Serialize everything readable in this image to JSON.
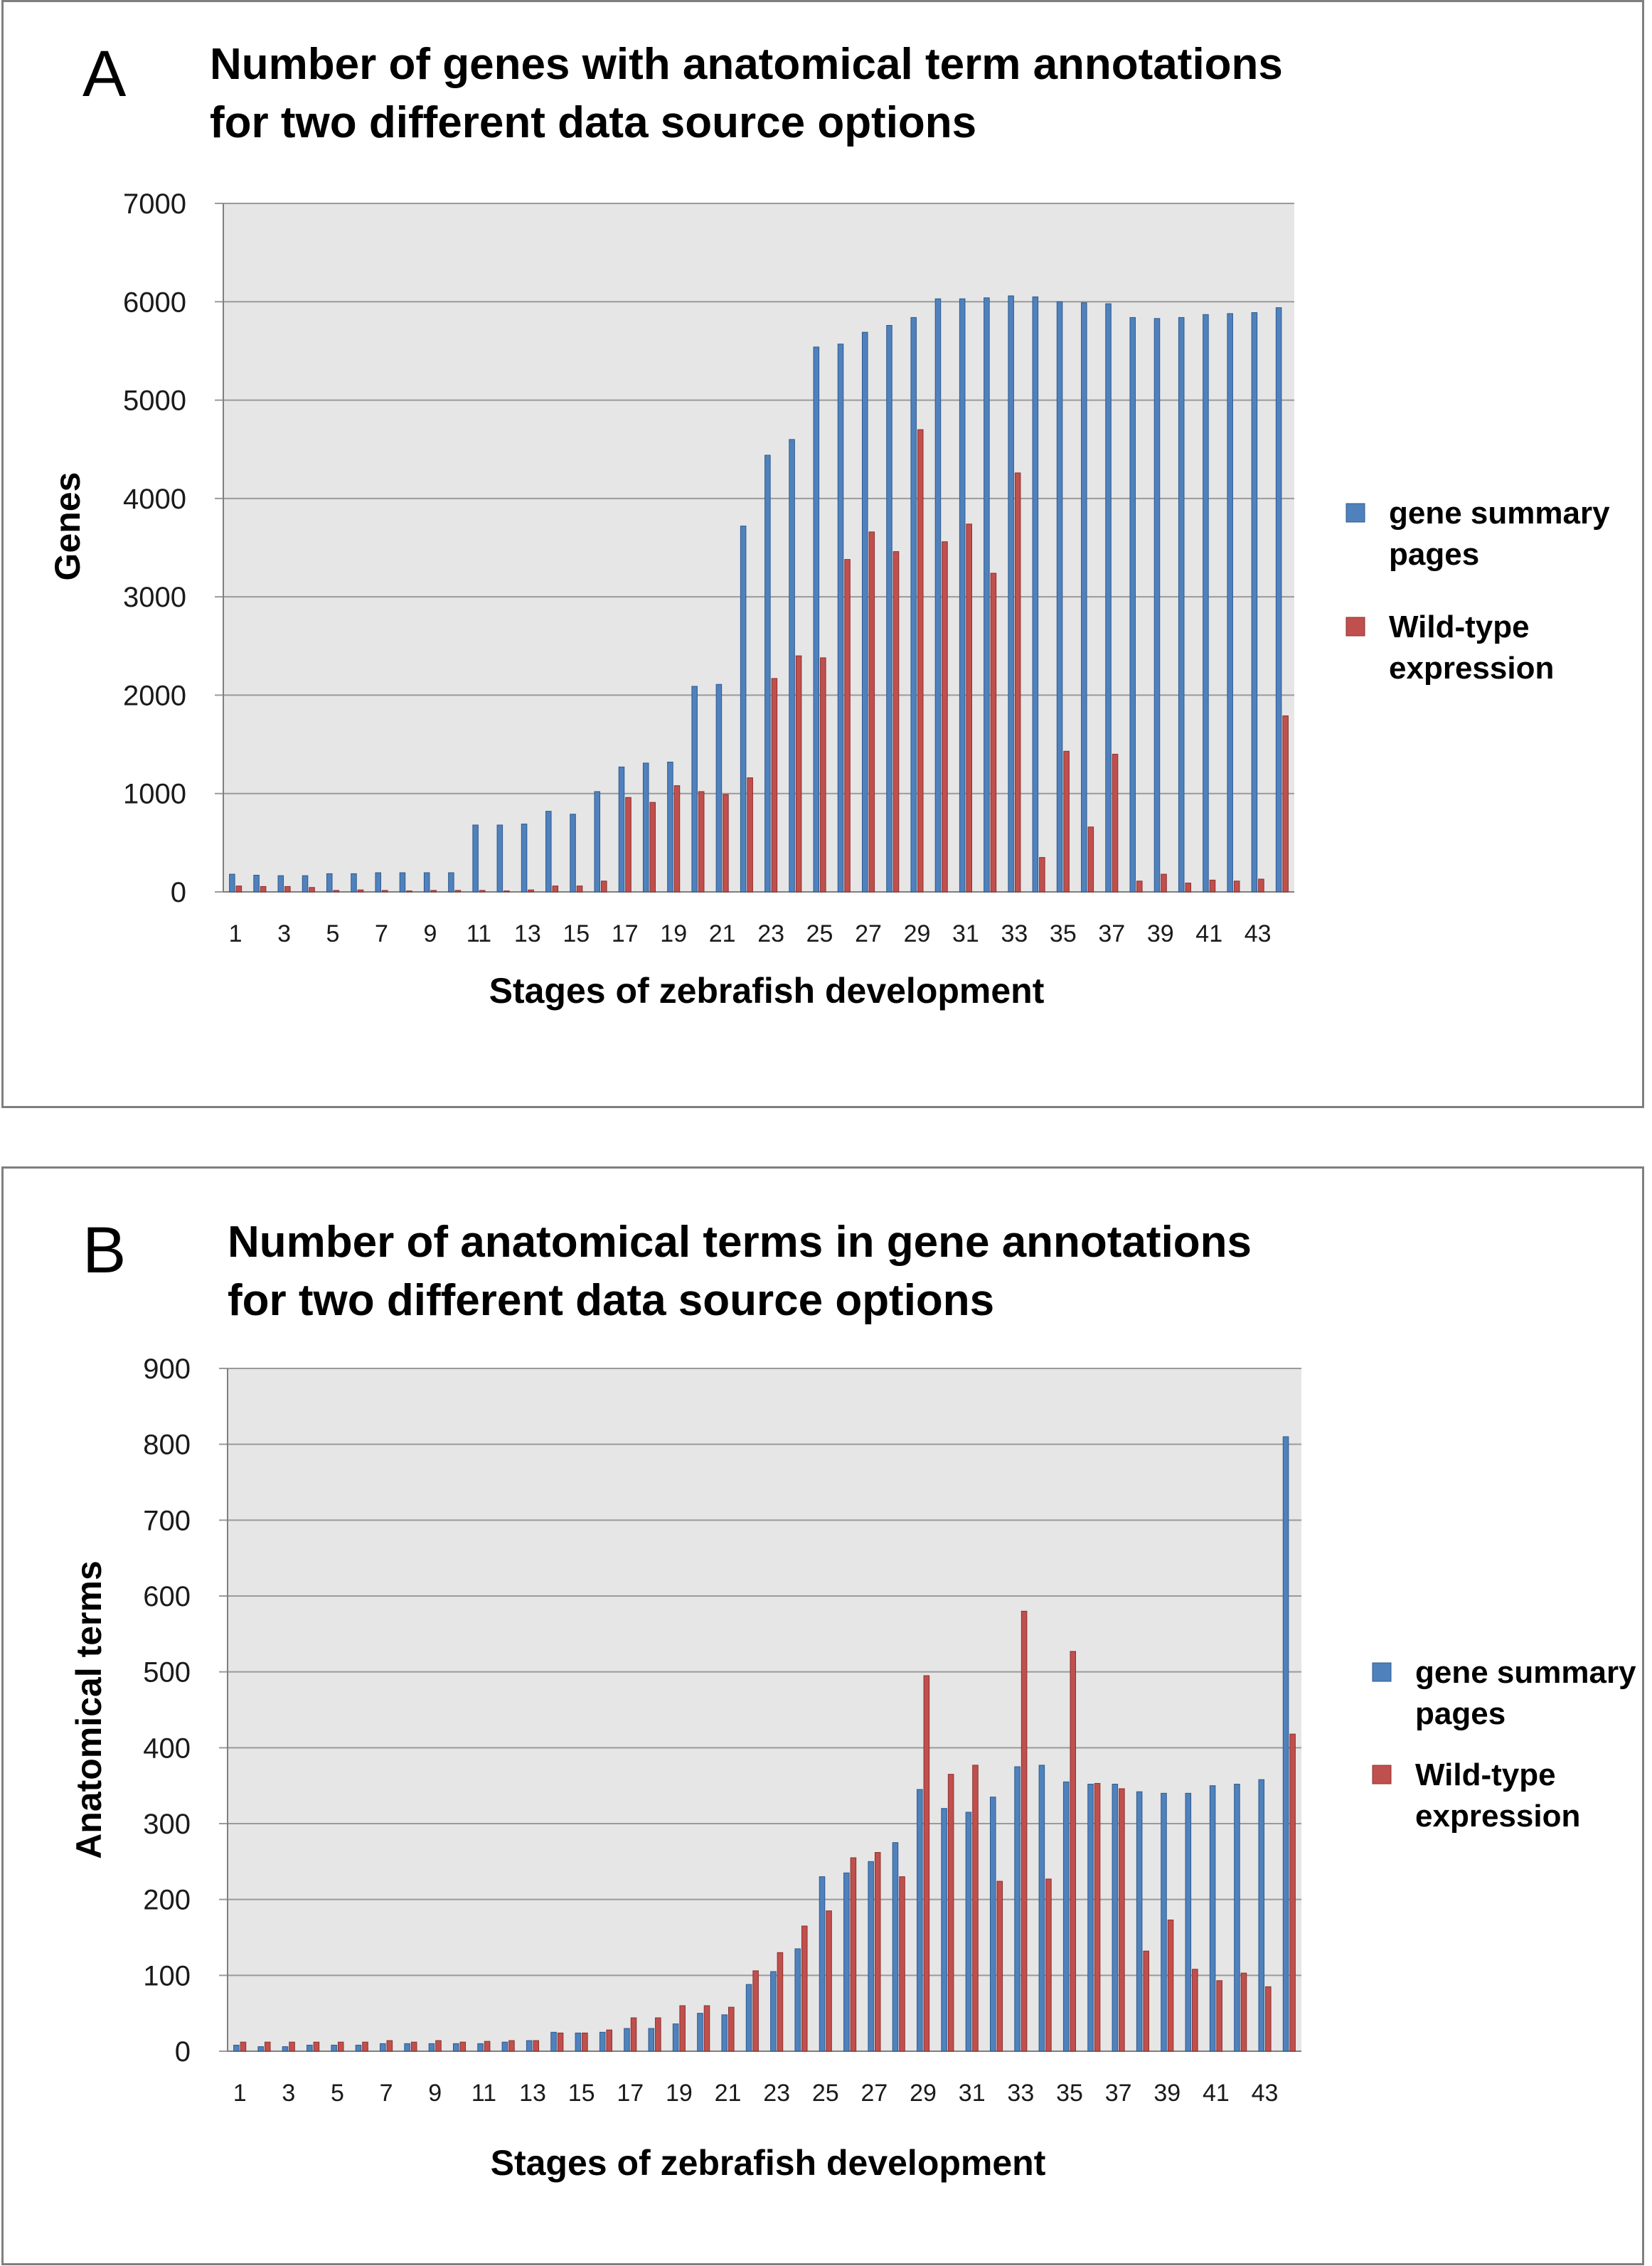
{
  "colors": {
    "series1": "#4f81bd",
    "series1_edge": "#2e5a8c",
    "series2": "#c0504d",
    "series2_edge": "#8c2f2c",
    "plot_bg": "#e6e6e6",
    "grid": "#9a9a9a"
  },
  "chart_data": [
    {
      "panel": "A",
      "type": "bar",
      "title_lines": [
        "Number of genes with anatomical term annotations",
        "for two different data source options"
      ],
      "xlabel": "Stages of zebrafish development",
      "ylabel": "Genes",
      "ylim": [
        0,
        7000
      ],
      "yticks": [
        0,
        1000,
        2000,
        3000,
        4000,
        5000,
        6000,
        7000
      ],
      "x_tick_labels": [
        "1",
        "3",
        "5",
        "7",
        "9",
        "11",
        "13",
        "15",
        "17",
        "19",
        "21",
        "23",
        "25",
        "27",
        "29",
        "31",
        "33",
        "35",
        "37",
        "39",
        "41",
        "43"
      ],
      "grid": true,
      "legend_position": "right",
      "categories": [
        1,
        2,
        3,
        4,
        5,
        6,
        7,
        8,
        9,
        10,
        11,
        12,
        13,
        14,
        15,
        16,
        17,
        18,
        19,
        20,
        21,
        22,
        23,
        24,
        25,
        26,
        27,
        28,
        29,
        30,
        31,
        32,
        33,
        34,
        35,
        36,
        37,
        38,
        39,
        40,
        41,
        42,
        43,
        44
      ],
      "series": [
        {
          "name": "gene summary pages",
          "legend_lines": [
            "gene summary",
            "pages"
          ],
          "values": [
            180,
            170,
            165,
            165,
            185,
            185,
            195,
            195,
            195,
            195,
            680,
            680,
            690,
            820,
            790,
            1020,
            1270,
            1310,
            1320,
            2090,
            2110,
            3720,
            4440,
            4600,
            5540,
            5570,
            5690,
            5760,
            5840,
            6030,
            6030,
            6040,
            6060,
            6050,
            6000,
            5990,
            5980,
            5840,
            5830,
            5840,
            5870,
            5880,
            5890,
            5940
          ]
        },
        {
          "name": "Wild-type expression",
          "legend_lines": [
            "Wild-type",
            "expression"
          ],
          "values": [
            60,
            55,
            55,
            45,
            15,
            20,
            15,
            10,
            15,
            15,
            15,
            10,
            20,
            60,
            60,
            110,
            960,
            910,
            1080,
            1020,
            990,
            1160,
            2170,
            2400,
            2380,
            3380,
            3660,
            3460,
            4700,
            3560,
            3740,
            3240,
            4260,
            350,
            1430,
            660,
            1400,
            110,
            180,
            90,
            120,
            110,
            130,
            1790
          ]
        }
      ]
    },
    {
      "panel": "B",
      "type": "bar",
      "title_lines": [
        "Number of anatomical terms in gene annotations",
        "for two different data source options"
      ],
      "xlabel": "Stages of zebrafish development",
      "ylabel": "Anatomical terms",
      "ylim": [
        0,
        900
      ],
      "yticks": [
        0,
        100,
        200,
        300,
        400,
        500,
        600,
        700,
        800,
        900
      ],
      "x_tick_labels": [
        "1",
        "3",
        "5",
        "7",
        "9",
        "11",
        "13",
        "15",
        "17",
        "19",
        "21",
        "23",
        "25",
        "27",
        "29",
        "31",
        "33",
        "35",
        "37",
        "39",
        "41",
        "43"
      ],
      "grid": true,
      "legend_position": "right",
      "categories": [
        1,
        2,
        3,
        4,
        5,
        6,
        7,
        8,
        9,
        10,
        11,
        12,
        13,
        14,
        15,
        16,
        17,
        18,
        19,
        20,
        21,
        22,
        23,
        24,
        25,
        26,
        27,
        28,
        29,
        30,
        31,
        32,
        33,
        34,
        35,
        36,
        37,
        38,
        39,
        40,
        41,
        42,
        43,
        44
      ],
      "series": [
        {
          "name": "gene summary pages",
          "legend_lines": [
            "gene summary",
            "pages"
          ],
          "values": [
            8,
            6,
            6,
            8,
            8,
            8,
            10,
            10,
            10,
            10,
            10,
            12,
            14,
            25,
            24,
            25,
            30,
            30,
            36,
            50,
            48,
            88,
            105,
            135,
            230,
            235,
            250,
            275,
            345,
            320,
            315,
            335,
            375,
            377,
            355,
            352,
            352,
            342,
            340,
            340,
            350,
            352,
            358,
            810
          ]
        },
        {
          "name": "Wild-type expression",
          "legend_lines": [
            "Wild-type",
            "expression"
          ],
          "values": [
            12,
            12,
            12,
            12,
            12,
            12,
            14,
            12,
            14,
            12,
            13,
            14,
            14,
            24,
            24,
            28,
            44,
            44,
            60,
            60,
            58,
            106,
            130,
            165,
            185,
            255,
            262,
            230,
            495,
            365,
            377,
            224,
            580,
            227,
            527,
            353,
            346,
            132,
            173,
            108,
            93,
            103,
            85,
            418
          ]
        }
      ]
    }
  ],
  "panels": [
    {
      "letter": "A"
    },
    {
      "letter": "B"
    }
  ]
}
